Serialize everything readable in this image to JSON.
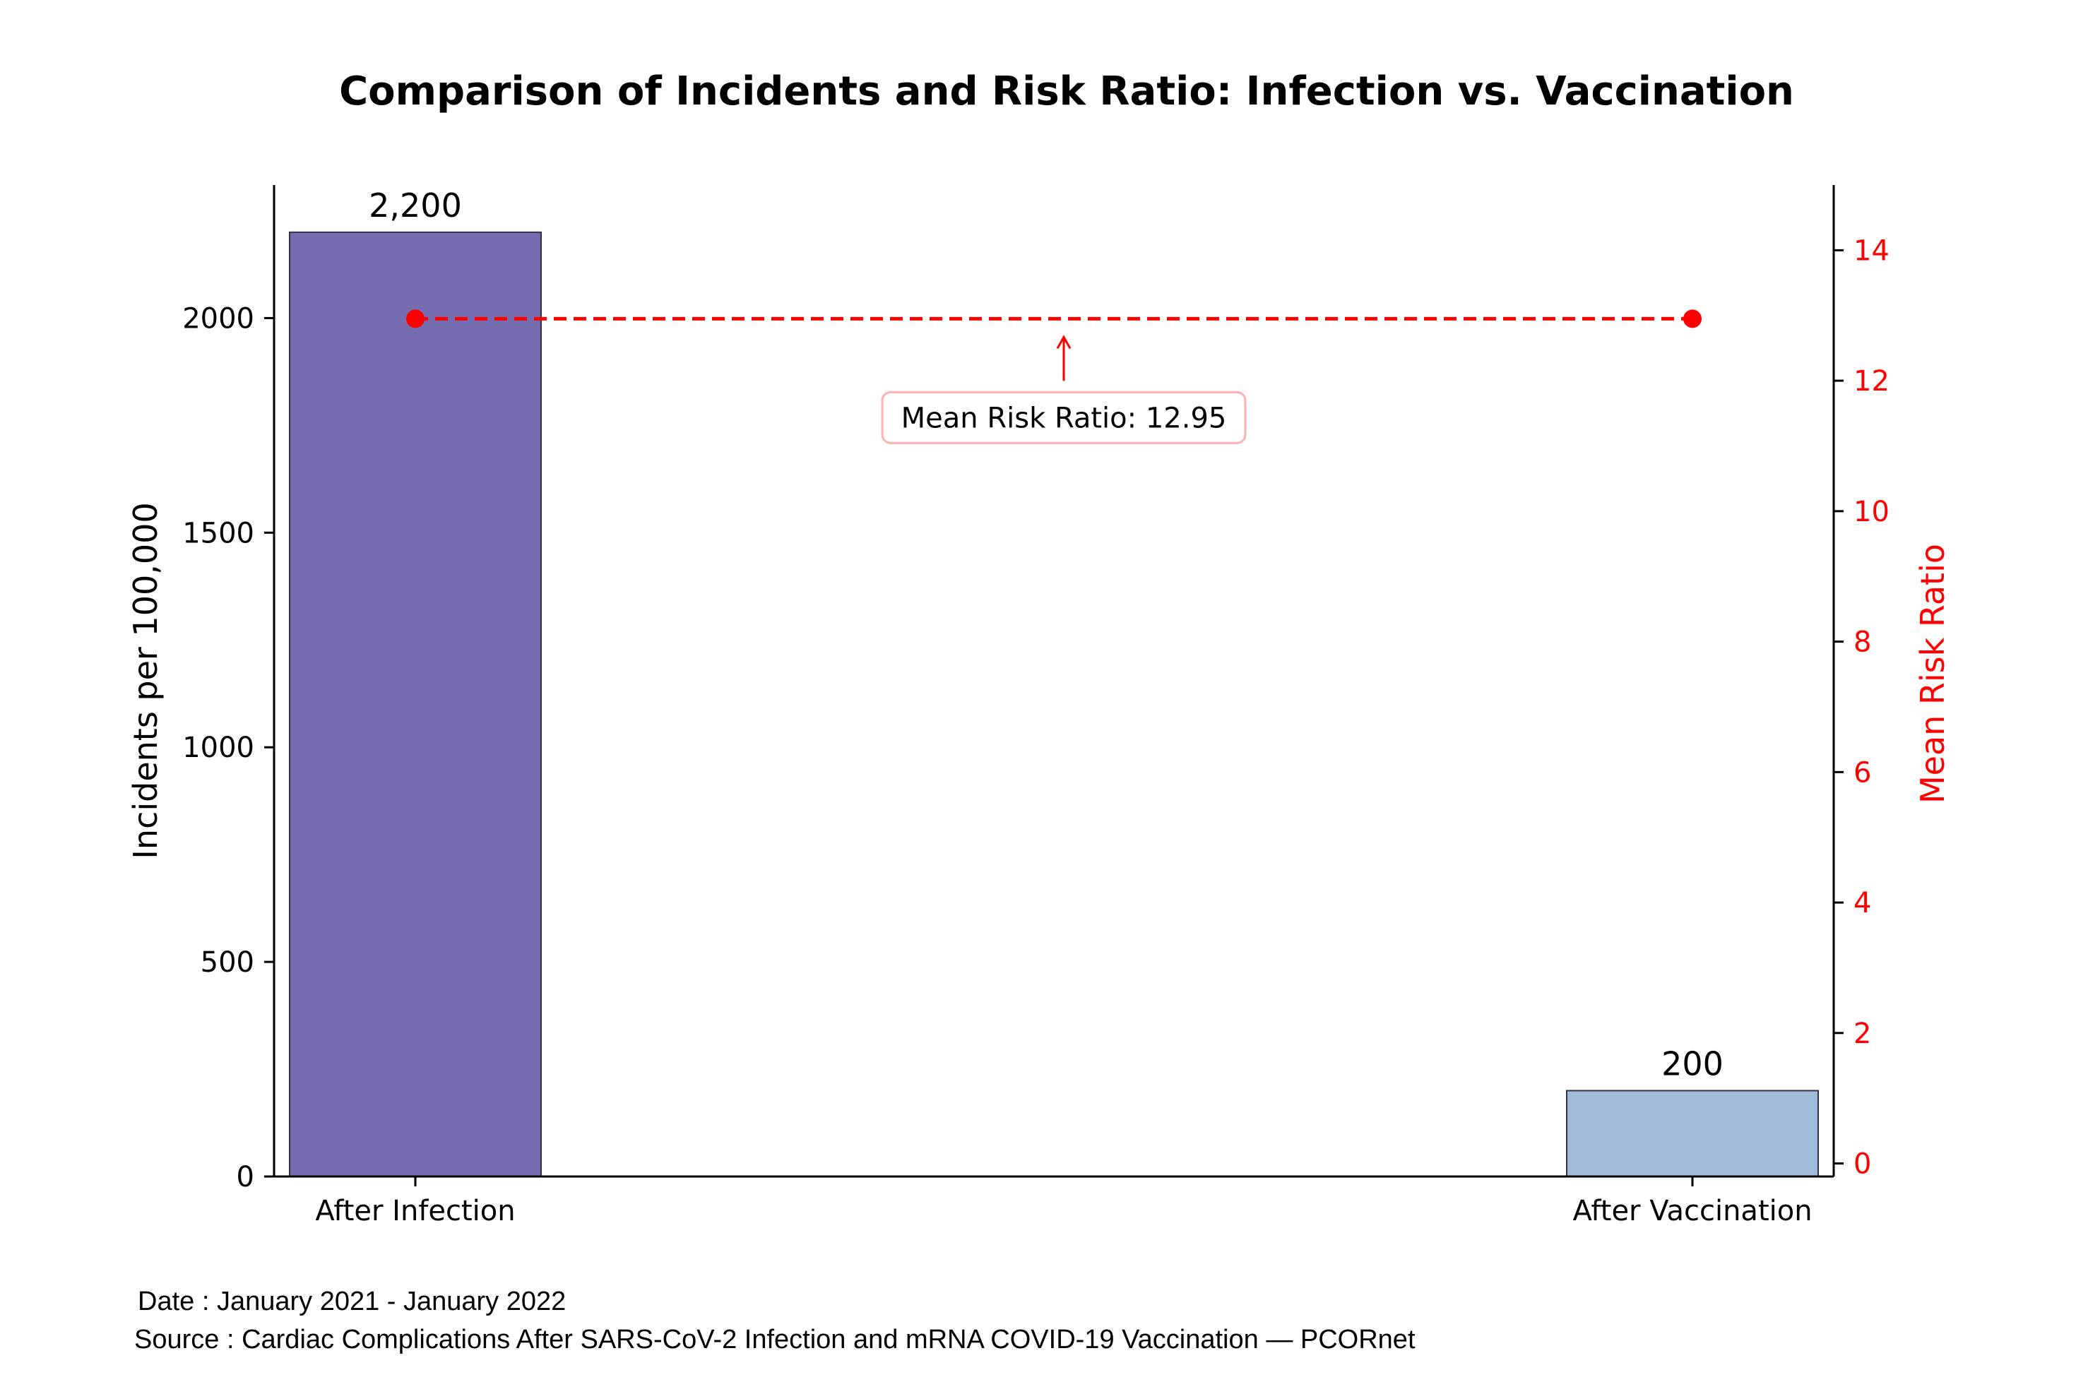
{
  "chart_data": {
    "type": "bar",
    "title": "Comparison of Incidents and Risk Ratio: Infection vs. Vaccination",
    "categories": [
      "After Infection",
      "After Vaccination"
    ],
    "values": [
      2200,
      200
    ],
    "value_labels": [
      "2,200",
      "200"
    ],
    "bar_colors": [
      "#766db0",
      "#a0bcda"
    ],
    "ylabel": "Incidents per 100,000",
    "ylim": [
      0,
      2310
    ],
    "yticks": [
      0,
      500,
      1000,
      1500,
      2000
    ],
    "secondary_axis": {
      "label": "Mean Risk Ratio",
      "color": "#ff0000",
      "ylim": [
        -0.2,
        15
      ],
      "yticks": [
        0,
        2,
        4,
        6,
        8,
        10,
        12,
        14
      ],
      "line": {
        "style": "dashed",
        "points": [
          {
            "category": "After Infection",
            "value": 12.95
          },
          {
            "category": "After Vaccination",
            "value": 12.95
          }
        ]
      },
      "annotation": {
        "text": "Mean Risk Ratio: 12.95",
        "value": 12.95
      }
    },
    "grid": false,
    "legend": "none"
  },
  "footnotes": {
    "date": "Date : January 2021 - January 2022",
    "source": "Source : Cardiac Complications After SARS-CoV-2 Infection and mRNA COVID-19 Vaccination — PCORnet"
  }
}
